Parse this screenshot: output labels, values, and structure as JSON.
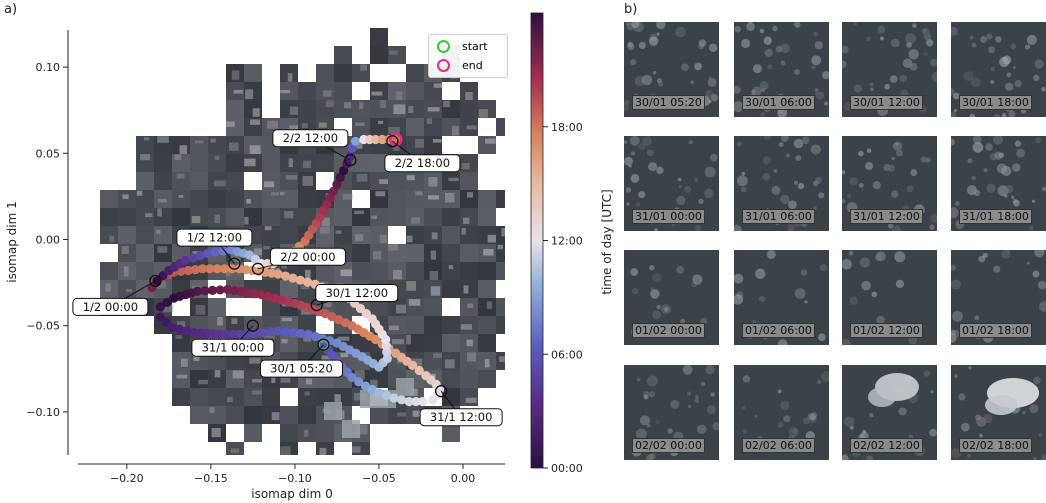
{
  "panel_a_label": "a)",
  "panel_b_label": "b)",
  "chart_data": {
    "type": "scatter",
    "xlabel": "isomap dim 0",
    "ylabel": "isomap dim 1",
    "xlim": [
      -0.235,
      0.025
    ],
    "ylim": [
      -0.125,
      0.125
    ],
    "xticks": [
      "−0.20",
      "−0.15",
      "−0.10",
      "−0.05",
      "0.00"
    ],
    "xtick_values": [
      -0.2,
      -0.15,
      -0.1,
      -0.05,
      0.0
    ],
    "yticks": [
      "0.10",
      "0.05",
      "0.00",
      "−0.05",
      "−0.10"
    ],
    "ytick_values": [
      0.1,
      0.05,
      0.0,
      -0.05,
      -0.1
    ],
    "colorbar": {
      "label": "time of day [UTC]",
      "ticks": [
        "00:00",
        "06:00",
        "12:00",
        "18:00"
      ],
      "tick_hours": [
        0,
        6,
        12,
        18
      ],
      "range_hours": [
        0,
        24
      ]
    },
    "legend": {
      "placement": "top-right",
      "entries": [
        {
          "label": "start",
          "color": "#3cc83c"
        },
        {
          "label": "end",
          "color": "#e8288c"
        }
      ]
    },
    "series": [
      {
        "x": [
          -0.083,
          -0.078,
          -0.072,
          -0.066,
          -0.058,
          -0.05,
          -0.041,
          -0.032,
          -0.024,
          -0.018,
          -0.015,
          -0.014,
          -0.016,
          -0.022,
          -0.03,
          -0.04,
          -0.052,
          -0.066,
          -0.082,
          -0.1,
          -0.12,
          -0.14,
          -0.158,
          -0.172,
          -0.18,
          -0.18,
          -0.173,
          -0.16,
          -0.145,
          -0.128,
          -0.11,
          -0.092,
          -0.075,
          -0.06,
          -0.05,
          -0.045,
          -0.046,
          -0.054,
          -0.068,
          -0.088,
          -0.11,
          -0.133,
          -0.155,
          -0.172,
          -0.182,
          -0.185,
          -0.182,
          -0.175,
          -0.165,
          -0.152,
          -0.138,
          -0.127,
          -0.12,
          -0.113,
          -0.104,
          -0.094,
          -0.085,
          -0.077,
          -0.071,
          -0.067,
          -0.066,
          -0.064,
          -0.059,
          -0.052,
          -0.044,
          -0.04
        ],
        "y": [
          -0.061,
          -0.067,
          -0.074,
          -0.08,
          -0.085,
          -0.089,
          -0.092,
          -0.094,
          -0.094,
          -0.093,
          -0.09,
          -0.087,
          -0.084,
          -0.079,
          -0.073,
          -0.066,
          -0.058,
          -0.05,
          -0.043,
          -0.037,
          -0.032,
          -0.029,
          -0.03,
          -0.034,
          -0.039,
          -0.045,
          -0.051,
          -0.054,
          -0.055,
          -0.055,
          -0.053,
          -0.055,
          -0.06,
          -0.068,
          -0.074,
          -0.069,
          -0.058,
          -0.046,
          -0.034,
          -0.026,
          -0.02,
          -0.017,
          -0.017,
          -0.019,
          -0.023,
          -0.028,
          -0.024,
          -0.018,
          -0.012,
          -0.008,
          -0.006,
          -0.009,
          -0.014,
          -0.014,
          -0.01,
          -0.001,
          0.013,
          0.028,
          0.04,
          0.048,
          0.053,
          0.057,
          0.058,
          0.058,
          0.058,
          0.058
        ],
        "hours": [
          5.33,
          6.0,
          7.0,
          8.0,
          9.0,
          10.0,
          11.0,
          11.5,
          12.0,
          12.0,
          12.0,
          12.5,
          13.0,
          14.0,
          15.0,
          16.0,
          17.0,
          18.0,
          19.0,
          20.0,
          21.0,
          22.0,
          23.0,
          0.0,
          0.5,
          1.0,
          2.0,
          3.0,
          4.0,
          5.0,
          6.0,
          7.0,
          8.0,
          9.0,
          10.0,
          11.0,
          12.0,
          13.0,
          14.0,
          15.0,
          16.0,
          17.0,
          18.0,
          19.0,
          20.0,
          22.0,
          0.0,
          2.0,
          4.0,
          6.0,
          8.0,
          10.0,
          12.0,
          14.0,
          16.0,
          18.0,
          20.0,
          22.0,
          0.0,
          3.0,
          6.0,
          9.0,
          12.0,
          15.0,
          17.0,
          18.0
        ]
      }
    ],
    "annotations": [
      {
        "text": "2/2 12:00",
        "x": -0.067,
        "y": 0.046
      },
      {
        "text": "2/2 18:00",
        "x": -0.042,
        "y": 0.057
      },
      {
        "text": "1/2 12:00",
        "x": -0.136,
        "y": -0.014
      },
      {
        "text": "2/2 00:00",
        "x": -0.122,
        "y": -0.017
      },
      {
        "text": "1/2 00:00",
        "x": -0.183,
        "y": -0.024
      },
      {
        "text": "30/1 12:00",
        "x": -0.087,
        "y": -0.038
      },
      {
        "text": "31/1 00:00",
        "x": -0.125,
        "y": -0.05
      },
      {
        "text": "30/1 05:20",
        "x": -0.083,
        "y": -0.061
      },
      {
        "text": "31/1 12:00",
        "x": -0.013,
        "y": -0.088
      }
    ]
  },
  "image_grid": {
    "labels": [
      "30/01 05:20",
      "30/01 06:00",
      "30/01 12:00",
      "30/01 18:00",
      "31/01 00:00",
      "31/01 06:00",
      "31/01 12:00",
      "31/01 18:00",
      "01/02 00:00",
      "01/02 06:00",
      "01/02 12:00",
      "01/02 18:00",
      "02/02 00:00",
      "02/02 06:00",
      "02/02 12:00",
      "02/02 18:00"
    ]
  }
}
